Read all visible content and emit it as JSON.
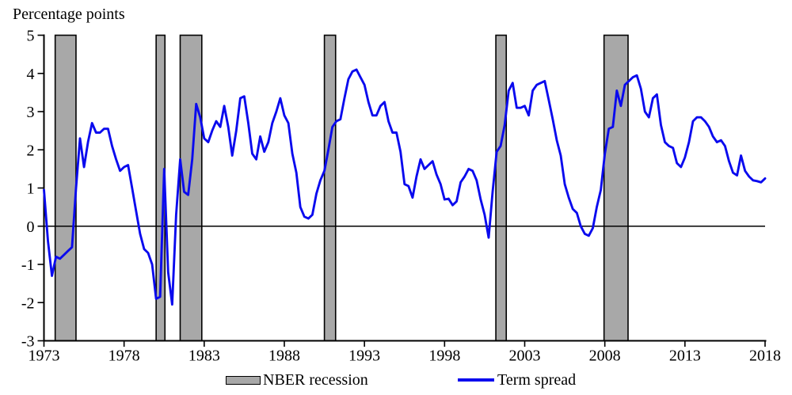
{
  "title": "Percentage points",
  "legend": {
    "recession_label": "NBER recession",
    "term_spread_label": "Term spread"
  },
  "colors": {
    "line": "#0a0aee",
    "recession_fill": "#a8a8a8",
    "recession_border": "#000000",
    "axis": "#000000",
    "text": "#000000"
  },
  "chart_data": {
    "type": "line",
    "title": "",
    "xlabel": "",
    "ylabel": "Percentage points",
    "xlim": [
      1973,
      2018
    ],
    "ylim": [
      -3,
      5
    ],
    "grid": false,
    "legend_position": "bottom-center",
    "x_ticks": [
      1973,
      1978,
      1983,
      1988,
      1993,
      1998,
      2003,
      2008,
      2013,
      2018
    ],
    "y_ticks": [
      5,
      4,
      3,
      2,
      1,
      0,
      -1,
      -2,
      -3
    ],
    "recession_bands": [
      [
        1973.7,
        1975.0
      ],
      [
        1980.0,
        1980.55
      ],
      [
        1981.5,
        1982.85
      ],
      [
        1990.5,
        1991.2
      ],
      [
        2001.2,
        2001.85
      ],
      [
        2007.95,
        2009.45
      ]
    ],
    "series": [
      {
        "name": "Term spread",
        "points": [
          [
            1973.0,
            0.95
          ],
          [
            1973.25,
            -0.4
          ],
          [
            1973.5,
            -1.3
          ],
          [
            1973.75,
            -0.8
          ],
          [
            1974.0,
            -0.85
          ],
          [
            1974.25,
            -0.75
          ],
          [
            1974.5,
            -0.65
          ],
          [
            1974.75,
            -0.55
          ],
          [
            1975.0,
            1.0
          ],
          [
            1975.25,
            2.3
          ],
          [
            1975.5,
            1.55
          ],
          [
            1975.75,
            2.2
          ],
          [
            1976.0,
            2.7
          ],
          [
            1976.25,
            2.45
          ],
          [
            1976.5,
            2.45
          ],
          [
            1976.75,
            2.55
          ],
          [
            1977.0,
            2.55
          ],
          [
            1977.25,
            2.1
          ],
          [
            1977.5,
            1.75
          ],
          [
            1977.75,
            1.45
          ],
          [
            1978.0,
            1.55
          ],
          [
            1978.25,
            1.6
          ],
          [
            1978.5,
            1.0
          ],
          [
            1978.75,
            0.4
          ],
          [
            1979.0,
            -0.2
          ],
          [
            1979.25,
            -0.6
          ],
          [
            1979.5,
            -0.7
          ],
          [
            1979.75,
            -1.0
          ],
          [
            1980.0,
            -1.9
          ],
          [
            1980.25,
            -1.85
          ],
          [
            1980.5,
            1.5
          ],
          [
            1980.75,
            -1.2
          ],
          [
            1981.0,
            -2.05
          ],
          [
            1981.25,
            0.3
          ],
          [
            1981.5,
            1.75
          ],
          [
            1981.75,
            0.9
          ],
          [
            1982.0,
            0.82
          ],
          [
            1982.25,
            1.75
          ],
          [
            1982.5,
            3.2
          ],
          [
            1982.75,
            2.85
          ],
          [
            1983.0,
            2.3
          ],
          [
            1983.25,
            2.2
          ],
          [
            1983.5,
            2.5
          ],
          [
            1983.75,
            2.75
          ],
          [
            1984.0,
            2.6
          ],
          [
            1984.25,
            3.15
          ],
          [
            1984.5,
            2.6
          ],
          [
            1984.75,
            1.85
          ],
          [
            1985.0,
            2.5
          ],
          [
            1985.25,
            3.35
          ],
          [
            1985.5,
            3.4
          ],
          [
            1985.75,
            2.7
          ],
          [
            1986.0,
            1.9
          ],
          [
            1986.25,
            1.75
          ],
          [
            1986.5,
            2.35
          ],
          [
            1986.75,
            1.95
          ],
          [
            1987.0,
            2.2
          ],
          [
            1987.25,
            2.7
          ],
          [
            1987.5,
            3.0
          ],
          [
            1987.75,
            3.35
          ],
          [
            1988.0,
            2.9
          ],
          [
            1988.25,
            2.7
          ],
          [
            1988.5,
            1.9
          ],
          [
            1988.75,
            1.4
          ],
          [
            1989.0,
            0.5
          ],
          [
            1989.25,
            0.25
          ],
          [
            1989.5,
            0.2
          ],
          [
            1989.75,
            0.3
          ],
          [
            1990.0,
            0.85
          ],
          [
            1990.25,
            1.2
          ],
          [
            1990.5,
            1.45
          ],
          [
            1990.75,
            2.0
          ],
          [
            1991.0,
            2.6
          ],
          [
            1991.25,
            2.75
          ],
          [
            1991.5,
            2.8
          ],
          [
            1991.75,
            3.35
          ],
          [
            1992.0,
            3.85
          ],
          [
            1992.25,
            4.05
          ],
          [
            1992.5,
            4.1
          ],
          [
            1992.75,
            3.9
          ],
          [
            1993.0,
            3.7
          ],
          [
            1993.25,
            3.25
          ],
          [
            1993.5,
            2.9
          ],
          [
            1993.75,
            2.9
          ],
          [
            1994.0,
            3.15
          ],
          [
            1994.25,
            3.25
          ],
          [
            1994.5,
            2.75
          ],
          [
            1994.75,
            2.45
          ],
          [
            1995.0,
            2.45
          ],
          [
            1995.25,
            1.95
          ],
          [
            1995.5,
            1.1
          ],
          [
            1995.75,
            1.05
          ],
          [
            1996.0,
            0.75
          ],
          [
            1996.25,
            1.3
          ],
          [
            1996.5,
            1.75
          ],
          [
            1996.75,
            1.5
          ],
          [
            1997.0,
            1.6
          ],
          [
            1997.25,
            1.7
          ],
          [
            1997.5,
            1.35
          ],
          [
            1997.75,
            1.1
          ],
          [
            1998.0,
            0.7
          ],
          [
            1998.25,
            0.72
          ],
          [
            1998.5,
            0.55
          ],
          [
            1998.75,
            0.65
          ],
          [
            1999.0,
            1.15
          ],
          [
            1999.25,
            1.3
          ],
          [
            1999.5,
            1.5
          ],
          [
            1999.75,
            1.45
          ],
          [
            2000.0,
            1.2
          ],
          [
            2000.25,
            0.7
          ],
          [
            2000.5,
            0.3
          ],
          [
            2000.75,
            -0.3
          ],
          [
            2001.0,
            0.9
          ],
          [
            2001.25,
            1.95
          ],
          [
            2001.5,
            2.1
          ],
          [
            2001.75,
            2.65
          ],
          [
            2002.0,
            3.55
          ],
          [
            2002.25,
            3.75
          ],
          [
            2002.5,
            3.1
          ],
          [
            2002.75,
            3.1
          ],
          [
            2003.0,
            3.15
          ],
          [
            2003.25,
            2.9
          ],
          [
            2003.5,
            3.55
          ],
          [
            2003.75,
            3.7
          ],
          [
            2004.0,
            3.75
          ],
          [
            2004.25,
            3.8
          ],
          [
            2004.5,
            3.3
          ],
          [
            2004.75,
            2.8
          ],
          [
            2005.0,
            2.25
          ],
          [
            2005.25,
            1.85
          ],
          [
            2005.5,
            1.1
          ],
          [
            2005.75,
            0.75
          ],
          [
            2006.0,
            0.45
          ],
          [
            2006.25,
            0.35
          ],
          [
            2006.5,
            0.0
          ],
          [
            2006.75,
            -0.2
          ],
          [
            2007.0,
            -0.25
          ],
          [
            2007.25,
            -0.05
          ],
          [
            2007.5,
            0.5
          ],
          [
            2007.75,
            0.95
          ],
          [
            2008.0,
            1.9
          ],
          [
            2008.25,
            2.55
          ],
          [
            2008.5,
            2.6
          ],
          [
            2008.75,
            3.55
          ],
          [
            2009.0,
            3.15
          ],
          [
            2009.25,
            3.7
          ],
          [
            2009.5,
            3.8
          ],
          [
            2009.75,
            3.9
          ],
          [
            2010.0,
            3.95
          ],
          [
            2010.25,
            3.6
          ],
          [
            2010.5,
            3.0
          ],
          [
            2010.75,
            2.85
          ],
          [
            2011.0,
            3.35
          ],
          [
            2011.25,
            3.45
          ],
          [
            2011.5,
            2.65
          ],
          [
            2011.75,
            2.2
          ],
          [
            2012.0,
            2.1
          ],
          [
            2012.25,
            2.05
          ],
          [
            2012.5,
            1.65
          ],
          [
            2012.75,
            1.55
          ],
          [
            2013.0,
            1.8
          ],
          [
            2013.25,
            2.2
          ],
          [
            2013.5,
            2.75
          ],
          [
            2013.75,
            2.85
          ],
          [
            2014.0,
            2.85
          ],
          [
            2014.25,
            2.75
          ],
          [
            2014.5,
            2.6
          ],
          [
            2014.75,
            2.35
          ],
          [
            2015.0,
            2.2
          ],
          [
            2015.25,
            2.25
          ],
          [
            2015.5,
            2.1
          ],
          [
            2015.75,
            1.7
          ],
          [
            2016.0,
            1.4
          ],
          [
            2016.25,
            1.33
          ],
          [
            2016.5,
            1.85
          ],
          [
            2016.75,
            1.45
          ],
          [
            2017.0,
            1.3
          ],
          [
            2017.25,
            1.2
          ],
          [
            2017.5,
            1.18
          ],
          [
            2017.75,
            1.15
          ],
          [
            2018.0,
            1.25
          ]
        ]
      }
    ]
  }
}
